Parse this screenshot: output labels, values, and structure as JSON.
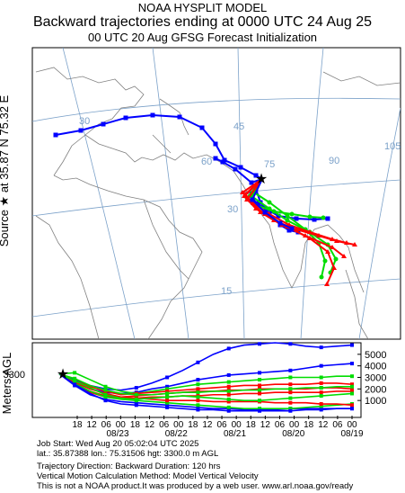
{
  "header": {
    "line1": "NOAA HYSPLIT MODEL",
    "line2": "Backward trajectories ending at 0000 UTC 24 Aug 25",
    "line3": "00 UTC 20 Aug    GFSG  Forecast Initialization"
  },
  "source_label": "Source ★ at   35.87 N   75.32 E",
  "map": {
    "lat_labels": [
      "30",
      "45",
      "60",
      "75",
      "90",
      "105",
      "30",
      "15"
    ],
    "lon_labels": [
      "30"
    ]
  },
  "chart_data": {
    "type": "line",
    "ylabel": "Meters AGL",
    "start_height_label": "3300",
    "y_ticks": [
      "5000",
      "4000",
      "3000",
      "2000",
      "1000"
    ],
    "ylim": [
      0,
      6000
    ],
    "x_tick_labels": [
      "18",
      "12",
      "06",
      "00",
      "18",
      "12",
      "06",
      "00",
      "18",
      "12",
      "06",
      "00",
      "18",
      "12",
      "06",
      "00",
      "18",
      "12",
      "06",
      "00"
    ],
    "date_labels": [
      "08/23",
      "08/22",
      "08/21",
      "08/20",
      "08/19"
    ],
    "series": [
      {
        "color": "#0000ff",
        "values": [
          3300,
          2800,
          2300,
          2000,
          1900,
          2100,
          2500,
          3000,
          3600,
          4300,
          5000,
          5500,
          5800,
          5900,
          6000,
          5900,
          5700,
          5600,
          5700,
          5800
        ]
      },
      {
        "color": "#0000ff",
        "values": [
          3300,
          2600,
          2000,
          1700,
          1600,
          1700,
          2000,
          2200,
          2500,
          2800,
          3000,
          3200,
          3300,
          3400,
          3500,
          3600,
          3800,
          4000,
          4100,
          4200
        ]
      },
      {
        "color": "#00dd00",
        "values": [
          3300,
          3400,
          2800,
          2200,
          1800,
          1600,
          1800,
          2000,
          2200,
          2400,
          2500,
          2600,
          2700,
          2800,
          2900,
          3000,
          3000,
          3000,
          3100,
          3100
        ]
      },
      {
        "color": "#ff0000",
        "values": [
          3300,
          2700,
          2200,
          1800,
          1500,
          1600,
          1700,
          1800,
          1900,
          2000,
          2100,
          2200,
          2300,
          2300,
          2400,
          2400,
          2400,
          2500,
          2500,
          2400
        ]
      },
      {
        "color": "#ff0000",
        "values": [
          3300,
          2500,
          1800,
          1400,
          1300,
          1400,
          1500,
          1600,
          1700,
          1800,
          1800,
          1900,
          1900,
          2000,
          2000,
          2000,
          2000,
          2100,
          2100,
          2000
        ]
      },
      {
        "color": "#00dd00",
        "values": [
          3300,
          2900,
          2300,
          1900,
          1600,
          1500,
          1500,
          1600,
          1700,
          1700,
          1800,
          1800,
          1900,
          1900,
          2000,
          2000,
          2100,
          2100,
          2200,
          2200
        ]
      },
      {
        "color": "#ff0000",
        "values": [
          3300,
          2400,
          1700,
          1300,
          1200,
          1200,
          1300,
          1300,
          1400,
          1400,
          1500,
          1500,
          1600,
          1600,
          1700,
          1700,
          1700,
          1700,
          1800,
          1800
        ]
      },
      {
        "color": "#0000ff",
        "values": [
          3300,
          2300,
          1500,
          1100,
          900,
          800,
          700,
          600,
          500,
          400,
          300,
          300,
          200,
          200,
          200,
          300,
          300,
          300,
          300,
          300
        ]
      },
      {
        "color": "#00dd00",
        "values": [
          3300,
          2500,
          1800,
          1300,
          1100,
          1000,
          900,
          800,
          700,
          600,
          500,
          400,
          300,
          300,
          300,
          300,
          400,
          500,
          600,
          700
        ]
      },
      {
        "color": "#ff0000",
        "values": [
          3300,
          2600,
          2000,
          1600,
          1300,
          1200,
          1100,
          1000,
          1000,
          1000,
          900,
          900,
          900,
          900,
          800,
          800,
          800,
          700,
          700,
          600
        ]
      },
      {
        "color": "#0000ff",
        "values": [
          3300,
          2400,
          1600,
          1000,
          700,
          600,
          500,
          400,
          300,
          200,
          200,
          100,
          100,
          100,
          100,
          100,
          200,
          200,
          300,
          300
        ]
      },
      {
        "color": "#00dd00",
        "values": [
          3300,
          2700,
          2100,
          1500,
          1200,
          1100,
          1200,
          1300,
          1400,
          1300,
          1200,
          1100,
          1000,
          1000,
          1100,
          1200,
          1300,
          1400,
          1500,
          1600
        ]
      }
    ]
  },
  "info": {
    "job": "Job Start: Wed Aug 20 05:02:04 UTC 2025",
    "coords": "lat.: 35.87388   lon.: 75.31506    hgt: 3300.0 m AGL",
    "direction": "Trajectory Direction: Backward        Duration: 120 hrs",
    "vertical": "Vertical Motion Calculation Method: Model Vertical Velocity",
    "disclaimer": "This is not a NOAA product.It was produced by a web user. www.arl.noaa.gov/ready"
  }
}
